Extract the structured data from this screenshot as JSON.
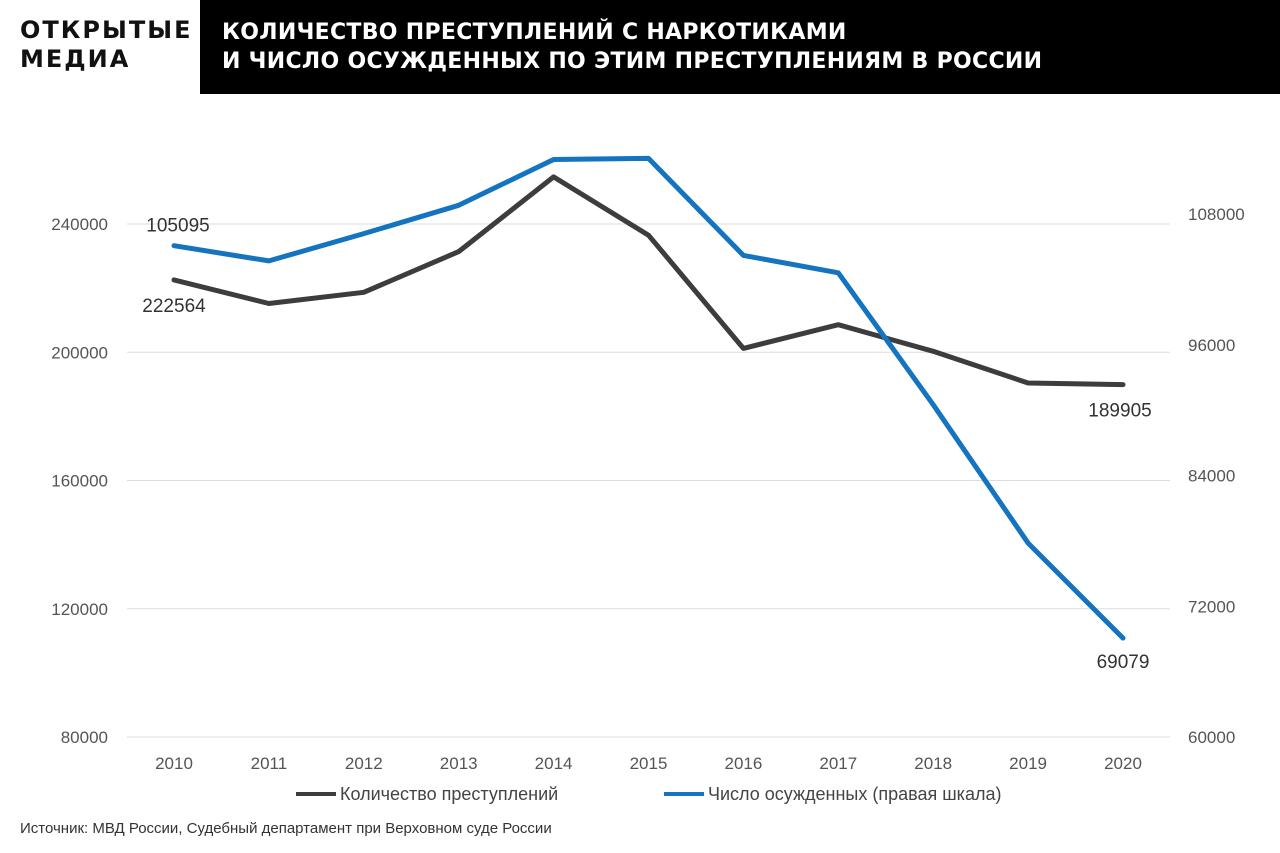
{
  "header": {
    "brand_line1": "ОТКРЫТЫЕ",
    "brand_line2": "МЕДИА",
    "title_line1": "КОЛИЧЕСТВО ПРЕСТУПЛЕНИЙ С НАРКОТИКАМИ",
    "title_line2": "И ЧИСЛО ОСУЖДЕННЫХ ПО ЭТИМ ПРЕСТУПЛЕНИЯМ В РОССИИ"
  },
  "chart_data": {
    "type": "line",
    "categories": [
      "2010",
      "2011",
      "2012",
      "2013",
      "2014",
      "2015",
      "2016",
      "2017",
      "2018",
      "2019",
      "2020"
    ],
    "y_left": {
      "ticks": [
        "80000",
        "120000",
        "160000",
        "200000",
        "240000"
      ],
      "range": [
        80000,
        256000
      ]
    },
    "y_right": {
      "ticks": [
        "60000",
        "72000",
        "84000",
        "96000",
        "108000"
      ],
      "range": [
        60000,
        113000
      ]
    },
    "grid": "horizontal",
    "legend_position": "bottom",
    "series": [
      {
        "name": "Количество преступлений",
        "axis": "left",
        "color": "#3d3d3d",
        "values": [
          222564,
          215200,
          218700,
          231400,
          254700,
          236500,
          201200,
          208600,
          200300,
          190400,
          189905
        ],
        "labels": [
          {
            "index": 0,
            "text": "222564"
          },
          {
            "index": 10,
            "text": "189905"
          }
        ]
      },
      {
        "name": "Число осужденных (правая шкала)",
        "axis": "right",
        "color": "#1474bf",
        "values": [
          105095,
          103700,
          106200,
          108800,
          113000,
          113100,
          104200,
          102600,
          90500,
          77800,
          69079
        ],
        "labels": [
          {
            "index": 0,
            "text": "105095"
          },
          {
            "index": 10,
            "text": "69079"
          }
        ]
      }
    ]
  },
  "source": "Источник: МВД России, Судебный департамент при Верховном суде России"
}
